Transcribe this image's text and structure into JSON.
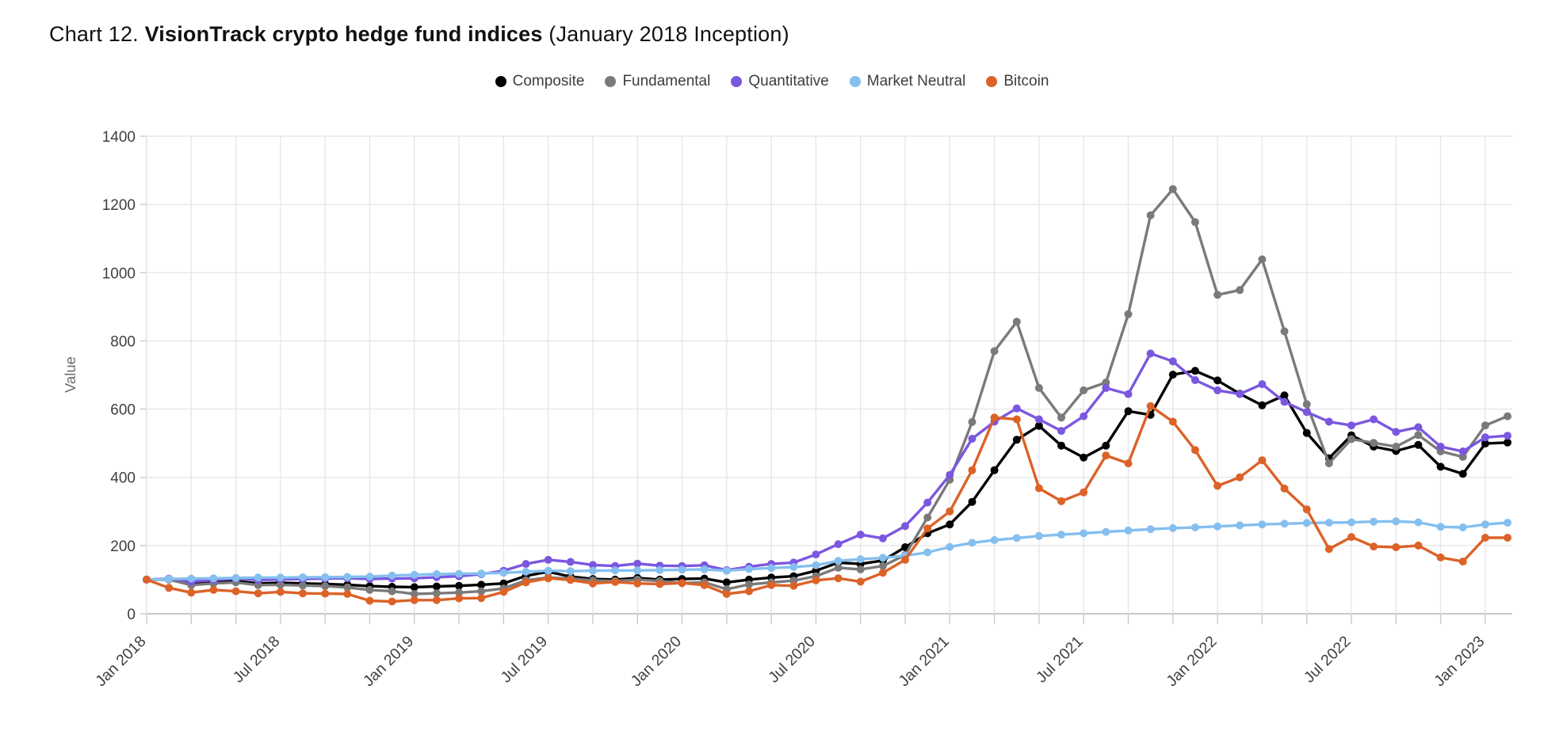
{
  "page": {
    "title_prefix": "Chart 12. ",
    "title_bold": "VisionTrack crypto hedge fund indices",
    "title_suffix": " (January 2018 Inception)"
  },
  "chart_data": {
    "type": "line",
    "title": "Chart 12. VisionTrack crypto hedge fund indices (January 2018 Inception)",
    "xlabel": "",
    "ylabel": "Value",
    "ylim": [
      0,
      1400
    ],
    "ytick_step": 200,
    "grid": true,
    "legend_position": "top-center",
    "x_tick_labels": [
      "Jan 2018",
      "Jul 2018",
      "Jan 2019",
      "Jul 2019",
      "Jan 2020",
      "Jul 2020",
      "Jan 2021",
      "Jul 2021",
      "Jan 2022",
      "Jul 2022",
      "Jan 2023"
    ],
    "x_tick_month_interval": 6,
    "months": [
      "Jan 2018",
      "Feb 2018",
      "Mar 2018",
      "Apr 2018",
      "May 2018",
      "Jun 2018",
      "Jul 2018",
      "Aug 2018",
      "Sep 2018",
      "Oct 2018",
      "Nov 2018",
      "Dec 2018",
      "Jan 2019",
      "Feb 2019",
      "Mar 2019",
      "Apr 2019",
      "May 2019",
      "Jun 2019",
      "Jul 2019",
      "Aug 2019",
      "Sep 2019",
      "Oct 2019",
      "Nov 2019",
      "Dec 2019",
      "Jan 2020",
      "Feb 2020",
      "Mar 2020",
      "Apr 2020",
      "May 2020",
      "Jun 2020",
      "Jul 2020",
      "Aug 2020",
      "Sep 2020",
      "Oct 2020",
      "Nov 2020",
      "Dec 2020",
      "Jan 2021",
      "Feb 2021",
      "Mar 2021",
      "Apr 2021",
      "May 2021",
      "Jun 2021",
      "Jul 2021",
      "Aug 2021",
      "Sep 2021",
      "Oct 2021",
      "Nov 2021",
      "Dec 2021",
      "Jan 2022",
      "Feb 2022",
      "Mar 2022",
      "Apr 2022",
      "May 2022",
      "Jun 2022",
      "Jul 2022",
      "Aug 2022",
      "Sep 2022",
      "Oct 2022",
      "Nov 2022",
      "Dec 2022",
      "Jan 2023",
      "Feb 2023"
    ],
    "series": [
      {
        "name": "Composite",
        "color": "#000000",
        "values": [
          100,
          102,
          87,
          92,
          96,
          89,
          91,
          89,
          87,
          85,
          81,
          79,
          78,
          80,
          82,
          85,
          89,
          111,
          123,
          109,
          102,
          100,
          105,
          100,
          102,
          103,
          92,
          100,
          106,
          110,
          126,
          150,
          146,
          156,
          195,
          236,
          262,
          328,
          421,
          510,
          551,
          493,
          458,
          493,
          594,
          583,
          701,
          712,
          684,
          645,
          611,
          640,
          530,
          456,
          523,
          490,
          477,
          495,
          431,
          410,
          499,
          502
        ]
      },
      {
        "name": "Fundamental",
        "color": "#7a7a7a",
        "values": [
          100,
          100,
          84,
          89,
          92,
          84,
          85,
          83,
          81,
          77,
          70,
          66,
          58,
          60,
          62,
          66,
          74,
          98,
          106,
          103,
          98,
          96,
          100,
          96,
          90,
          92,
          72,
          86,
          92,
          97,
          110,
          135,
          130,
          140,
          172,
          282,
          393,
          562,
          770,
          856,
          662,
          575,
          655,
          678,
          878,
          1168,
          1245,
          1148,
          935,
          949,
          1039,
          828,
          614,
          441,
          512,
          501,
          490,
          524,
          476,
          460,
          552,
          579
        ]
      },
      {
        "name": "Quantitative",
        "color": "#7b57e0",
        "values": [
          100,
          103,
          94,
          99,
          103,
          99,
          101,
          102,
          103,
          104,
          102,
          103,
          104,
          107,
          110,
          116,
          126,
          146,
          158,
          152,
          143,
          140,
          147,
          141,
          140,
          142,
          128,
          138,
          146,
          150,
          174,
          204,
          232,
          221,
          257,
          326,
          407,
          513,
          563,
          602,
          570,
          536,
          579,
          662,
          644,
          763,
          740,
          685,
          655,
          644,
          673,
          621,
          591,
          563,
          552,
          570,
          533,
          547,
          490,
          476,
          517,
          522
        ]
      },
      {
        "name": "Market Neutral",
        "color": "#85bfef",
        "values": [
          100,
          102,
          103,
          104,
          105,
          106,
          106,
          107,
          107,
          108,
          109,
          112,
          114,
          116,
          117,
          118,
          120,
          123,
          126,
          125,
          126,
          127,
          127,
          128,
          129,
          130,
          126,
          131,
          134,
          137,
          142,
          155,
          160,
          164,
          170,
          180,
          196,
          208,
          216,
          222,
          228,
          232,
          236,
          240,
          244,
          248,
          251,
          253,
          256,
          259,
          262,
          264,
          266,
          267,
          268,
          270,
          271,
          268,
          255,
          253,
          262,
          267
        ]
      },
      {
        "name": "Bitcoin",
        "color": "#dc6228",
        "values": [
          100,
          76,
          62,
          70,
          66,
          60,
          64,
          60,
          59,
          58,
          38,
          36,
          40,
          40,
          45,
          46,
          64,
          92,
          104,
          99,
          89,
          93,
          89,
          87,
          90,
          84,
          58,
          66,
          84,
          82,
          98,
          104,
          94,
          120,
          158,
          250,
          300,
          421,
          575,
          570,
          368,
          330,
          356,
          464,
          441,
          609,
          563,
          480,
          375,
          400,
          450,
          367,
          306,
          190,
          225,
          197,
          195,
          200,
          165,
          153,
          223,
          223
        ]
      }
    ],
    "style": {
      "grid_color": "#e7e7e7",
      "axis_color": "#c9c9c9",
      "tick_label_color": "#3f3f3f",
      "line_width": 3.4,
      "marker_radius": 5
    }
  }
}
